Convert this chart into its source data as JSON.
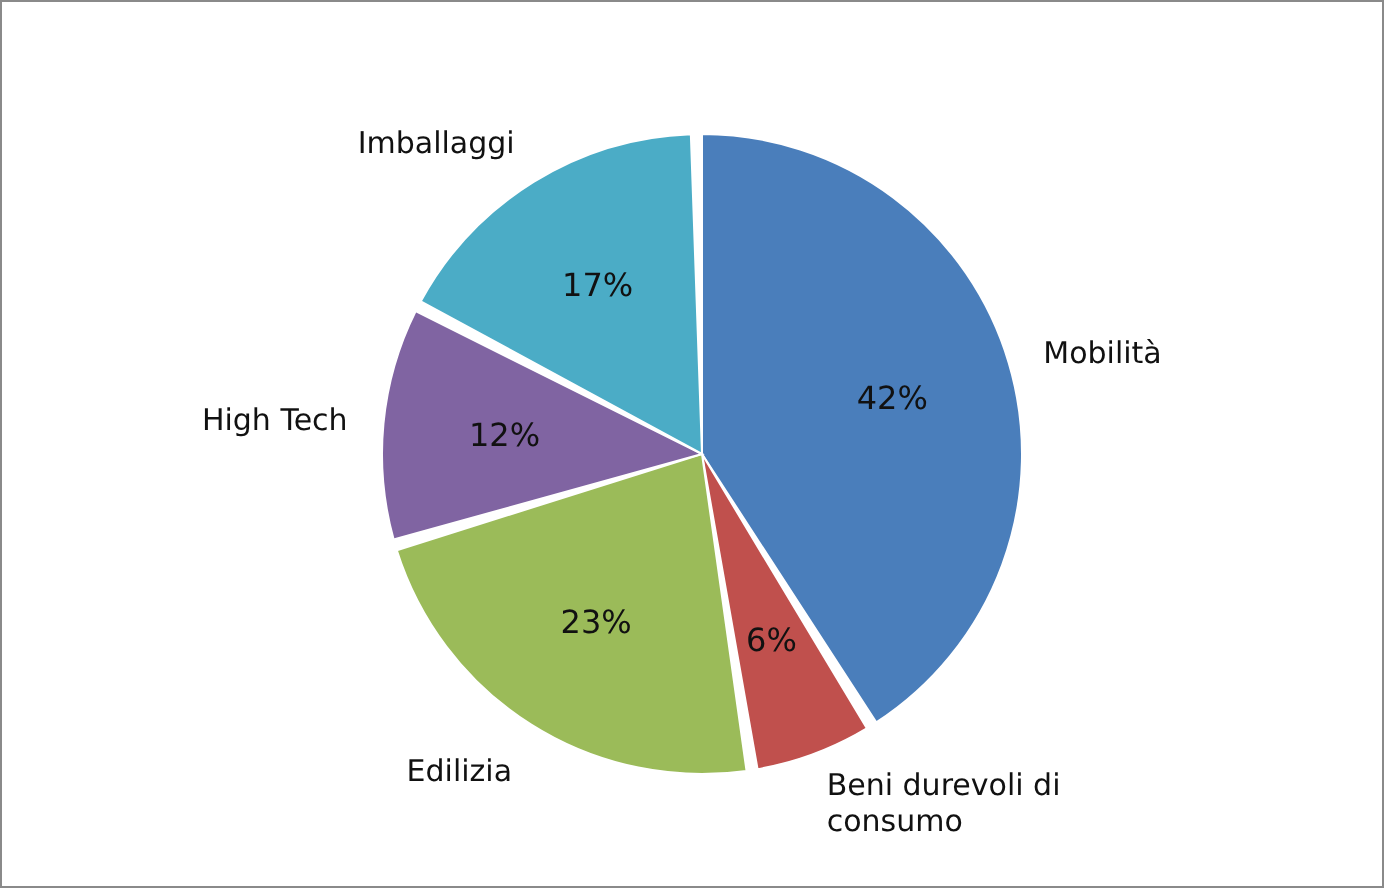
{
  "chart_data": {
    "type": "pie",
    "categories": [
      "Mobilità",
      "Beni durevoli di consumo",
      "Edilizia",
      "High Tech",
      "Imballaggi"
    ],
    "values": [
      42,
      6,
      23,
      12,
      17
    ],
    "colors": [
      "#4a7ebb",
      "#c0504d",
      "#9bbb59",
      "#8064a2",
      "#4bacc6"
    ],
    "value_labels": [
      "42%",
      "6%",
      "23%",
      "12%",
      "17%"
    ]
  }
}
